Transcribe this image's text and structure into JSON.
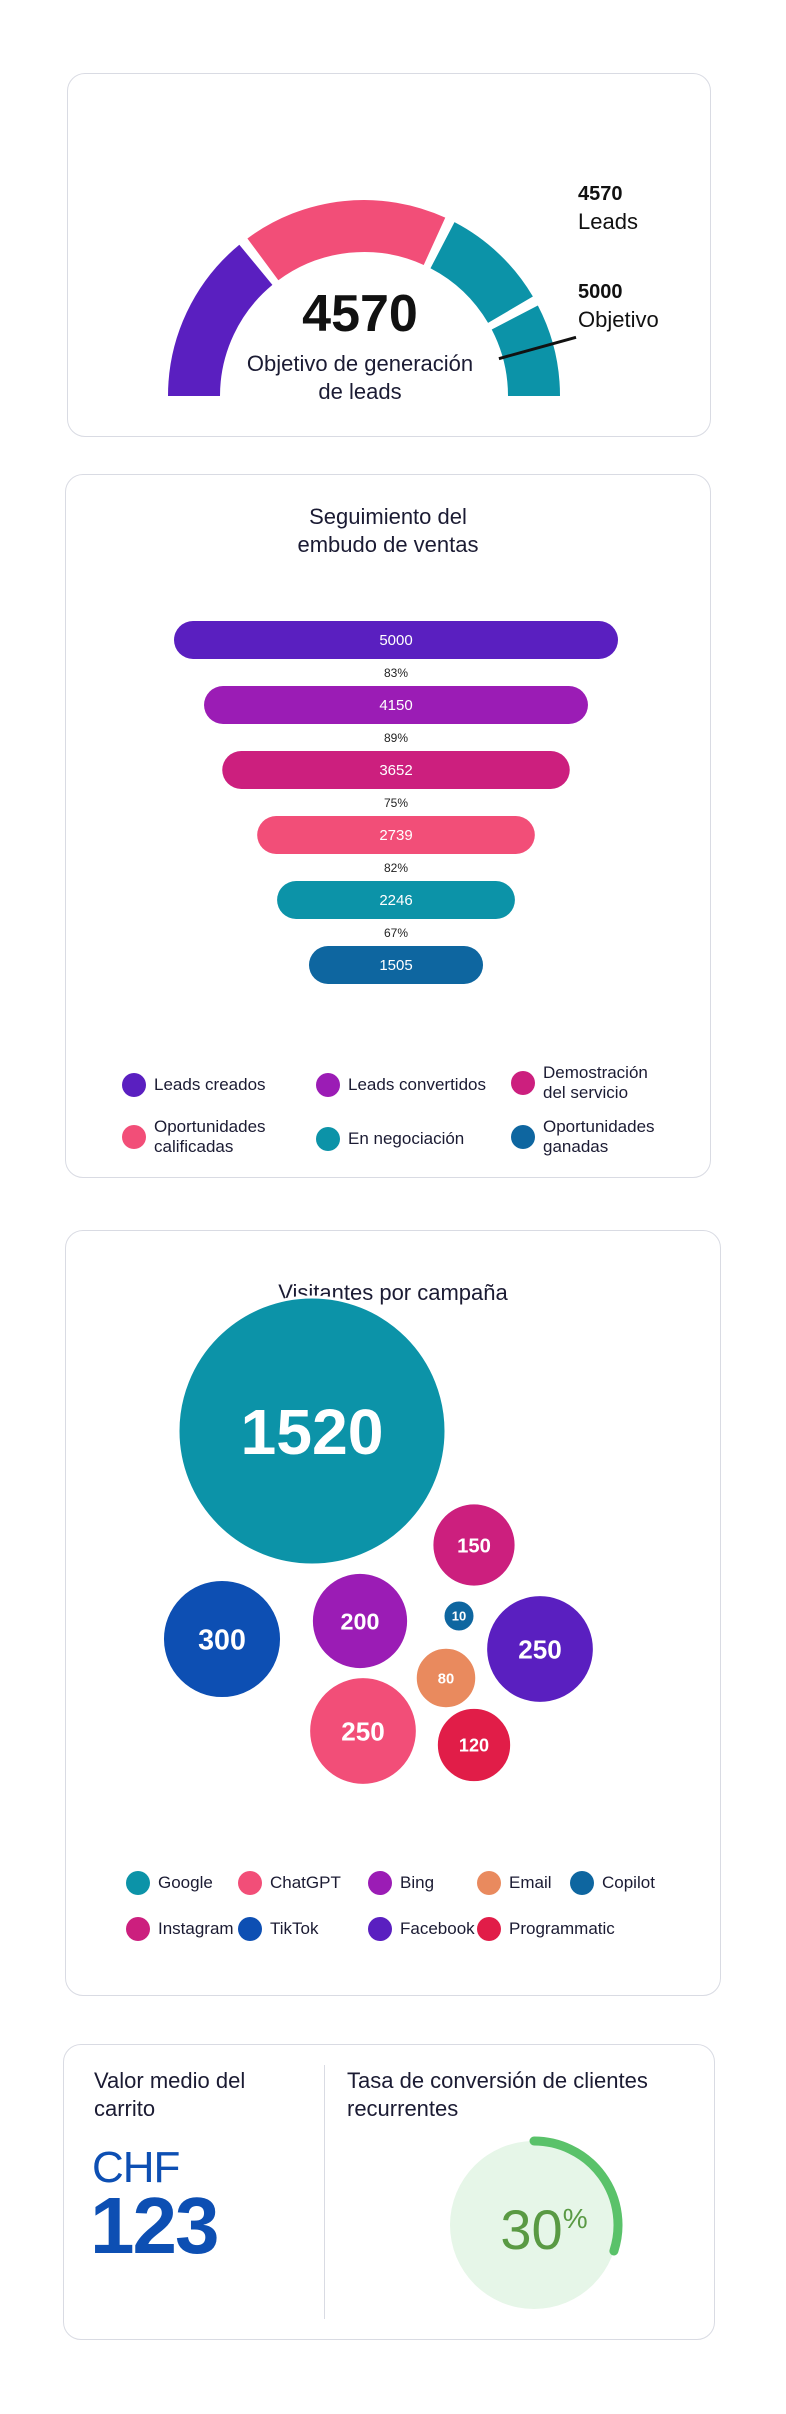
{
  "gauge": {
    "value": 4570,
    "value_text": "4570",
    "target": 5000,
    "caption": "Objetivo de generación de leads",
    "caption_line1": "Objetivo de generación",
    "caption_line2": "de leads",
    "leads_number": "4570",
    "leads_label": "Leads",
    "target_number": "5000",
    "target_label": "Objetivo",
    "colors": [
      "#5a1fc0",
      "#f24e78",
      "#0c93a8",
      "#0c93a8"
    ]
  },
  "funnel": {
    "title_line1": "Seguimiento del",
    "title_line2": "embudo de ventas",
    "legend": [
      {
        "label": "Leads creados",
        "color": "#5a1fc0"
      },
      {
        "label": "Leads convertidos",
        "color": "#9b1cb5"
      },
      {
        "label": "Demostración del servicio",
        "color": "#cc1f7e"
      },
      {
        "label": "Oportunidades calificadas",
        "color": "#f24e78"
      },
      {
        "label": "En negociación",
        "color": "#0c93a8"
      },
      {
        "label": "Oportunidades ganadas",
        "color": "#0e66a0"
      }
    ]
  },
  "bubbles": {
    "title": "Visitantes por campaña",
    "legend": [
      {
        "label": "Google",
        "color": "#0c93a8"
      },
      {
        "label": "ChatGPT",
        "color": "#f24e78"
      },
      {
        "label": "Bing",
        "color": "#9b1cb5"
      },
      {
        "label": "Email",
        "color": "#e98a5e"
      },
      {
        "label": "Copilot",
        "color": "#0e66a0"
      },
      {
        "label": "Instagram",
        "color": "#cc1f7e"
      },
      {
        "label": "TikTok",
        "color": "#0d4fb3"
      },
      {
        "label": "Facebook",
        "color": "#5a1fc0"
      },
      {
        "label": "Programmatic",
        "color": "#e11d48"
      }
    ]
  },
  "cart": {
    "label_line1": "Valor medio del",
    "label_line2": "carrito",
    "currency": "CHF",
    "value": "123",
    "color": "#0d4fb3"
  },
  "retention": {
    "label_line1": "Tasa de conversión de clientes",
    "label_line2": "recurrentes",
    "value": "30",
    "unit": "%",
    "percent": 30,
    "ring_color": "#5ac26a",
    "bg_color": "#e6f6e8",
    "text_color": "#5a9a44"
  },
  "chart_data": [
    {
      "type": "gauge",
      "title": "Objetivo de generación de leads",
      "value": 4570,
      "target": 5000,
      "labels": [
        "Leads",
        "Objetivo"
      ]
    },
    {
      "type": "bar",
      "title": "Seguimiento del embudo de ventas",
      "categories": [
        "Leads creados",
        "Leads convertidos",
        "Demostración del servicio",
        "Oportunidades calificadas",
        "En negociación",
        "Oportunidades ganadas"
      ],
      "values": [
        5000,
        4150,
        3652,
        2739,
        2246,
        1505
      ],
      "value_labels": [
        "5000",
        "4150",
        "3652",
        "2739",
        "2246",
        "1505"
      ],
      "conversion_rates": [
        "83%",
        "89%",
        "75%",
        "82%",
        "67%"
      ],
      "colors": [
        "#5a1fc0",
        "#9b1cb5",
        "#cc1f7e",
        "#f24e78",
        "#0c93a8",
        "#0e66a0"
      ]
    },
    {
      "type": "scatter",
      "title": "Visitantes por campaña",
      "categories": [
        "Google",
        "ChatGPT",
        "Bing",
        "Email",
        "Copilot",
        "Instagram",
        "TikTok",
        "Facebook",
        "Programmatic"
      ],
      "values": [
        1520,
        250,
        200,
        80,
        10,
        150,
        300,
        250,
        120
      ],
      "colors": [
        "#0c93a8",
        "#f24e78",
        "#9b1cb5",
        "#e98a5e",
        "#0e66a0",
        "#cc1f7e",
        "#0d4fb3",
        "#5a1fc0",
        "#e11d48"
      ]
    }
  ]
}
